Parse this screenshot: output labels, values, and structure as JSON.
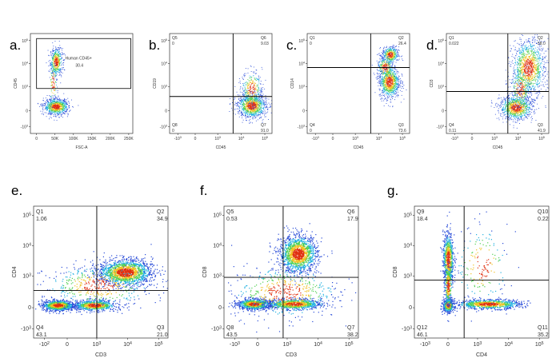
{
  "chart_data": [
    {
      "panel": "a.",
      "type": "scatter",
      "xlabel": "FSC-A",
      "ylabel": "CD45",
      "x_ticks": [
        "0",
        "50K",
        "100K",
        "150K",
        "200K",
        "250K"
      ],
      "y_ticks": [
        "10^5",
        "10^4",
        "10^3",
        "0",
        "-10^3"
      ],
      "gate": {
        "name": "Human CD45+",
        "value": "30.4"
      },
      "quadrants": []
    },
    {
      "panel": "b.",
      "type": "scatter",
      "xlabel": "CD45",
      "ylabel": "CD19",
      "x_ticks": [
        "-10^3",
        "0",
        "10^3",
        "10^4",
        "10^5"
      ],
      "y_ticks": [
        "10^5",
        "10^4",
        "10^3",
        "0",
        "-10^3"
      ],
      "quadrants": [
        {
          "name": "Q5",
          "value": "0"
        },
        {
          "name": "Q6",
          "value": "9.03"
        },
        {
          "name": "Q8",
          "value": "0"
        },
        {
          "name": "Q7",
          "value": "91.0"
        }
      ]
    },
    {
      "panel": "c.",
      "type": "scatter",
      "xlabel": "CD45",
      "ylabel": "CD14",
      "x_ticks": [
        "-10^3",
        "0",
        "10^3",
        "10^4",
        "10^5"
      ],
      "y_ticks": [
        "10^5",
        "10^4",
        "10^3",
        "0",
        "-10^3"
      ],
      "quadrants": [
        {
          "name": "Q1",
          "value": "0"
        },
        {
          "name": "Q2",
          "value": "26.4"
        },
        {
          "name": "Q4",
          "value": "0"
        },
        {
          "name": "Q3",
          "value": "73.6"
        }
      ]
    },
    {
      "panel": "d.",
      "type": "scatter",
      "xlabel": "CD45",
      "ylabel": "CD3",
      "x_ticks": [
        "-10^3",
        "0",
        "10^3",
        "10^4",
        "10^5"
      ],
      "y_ticks": [
        "10^5",
        "10^4",
        "10^3",
        "0",
        "-10^3"
      ],
      "quadrants": [
        {
          "name": "Q1",
          "value": "0.022"
        },
        {
          "name": "Q2",
          "value": "58.0"
        },
        {
          "name": "Q4",
          "value": "0.11"
        },
        {
          "name": "Q3",
          "value": "41.9"
        }
      ]
    },
    {
      "panel": "e.",
      "type": "scatter",
      "xlabel": "CD3",
      "ylabel": "CD4",
      "x_ticks": [
        "-10^2",
        "0",
        "10^3",
        "10^4",
        "10^5"
      ],
      "y_ticks": [
        "10^5",
        "10^4",
        "10^3",
        "0",
        "-10^3"
      ],
      "quadrants": [
        {
          "name": "Q1",
          "value": "1.06"
        },
        {
          "name": "Q2",
          "value": "34.9"
        },
        {
          "name": "Q4",
          "value": "43.1"
        },
        {
          "name": "Q3",
          "value": "21.0"
        }
      ]
    },
    {
      "panel": "f.",
      "type": "scatter",
      "xlabel": "CD3",
      "ylabel": "CD8",
      "x_ticks": [
        "-10^3",
        "0",
        "10^3",
        "10^4",
        "10^5"
      ],
      "y_ticks": [
        "10^5",
        "10^4",
        "10^3",
        "0",
        "-10^3"
      ],
      "quadrants": [
        {
          "name": "Q5",
          "value": "0.53"
        },
        {
          "name": "Q6",
          "value": "17.9"
        },
        {
          "name": "Q8",
          "value": "43.5"
        },
        {
          "name": "Q7",
          "value": "38.2"
        }
      ]
    },
    {
      "panel": "g.",
      "type": "scatter",
      "xlabel": "CD4",
      "ylabel": "CD8",
      "x_ticks": [
        "-10^3",
        "0",
        "10^3",
        "10^4",
        "10^5"
      ],
      "y_ticks": [
        "10^5",
        "10^4",
        "10^3",
        "0",
        "-10^3"
      ],
      "quadrants": [
        {
          "name": "Q9",
          "value": "18.4"
        },
        {
          "name": "Q10",
          "value": "0.22"
        },
        {
          "name": "Q12",
          "value": "46.1"
        },
        {
          "name": "Q11",
          "value": "35.2"
        }
      ]
    }
  ]
}
